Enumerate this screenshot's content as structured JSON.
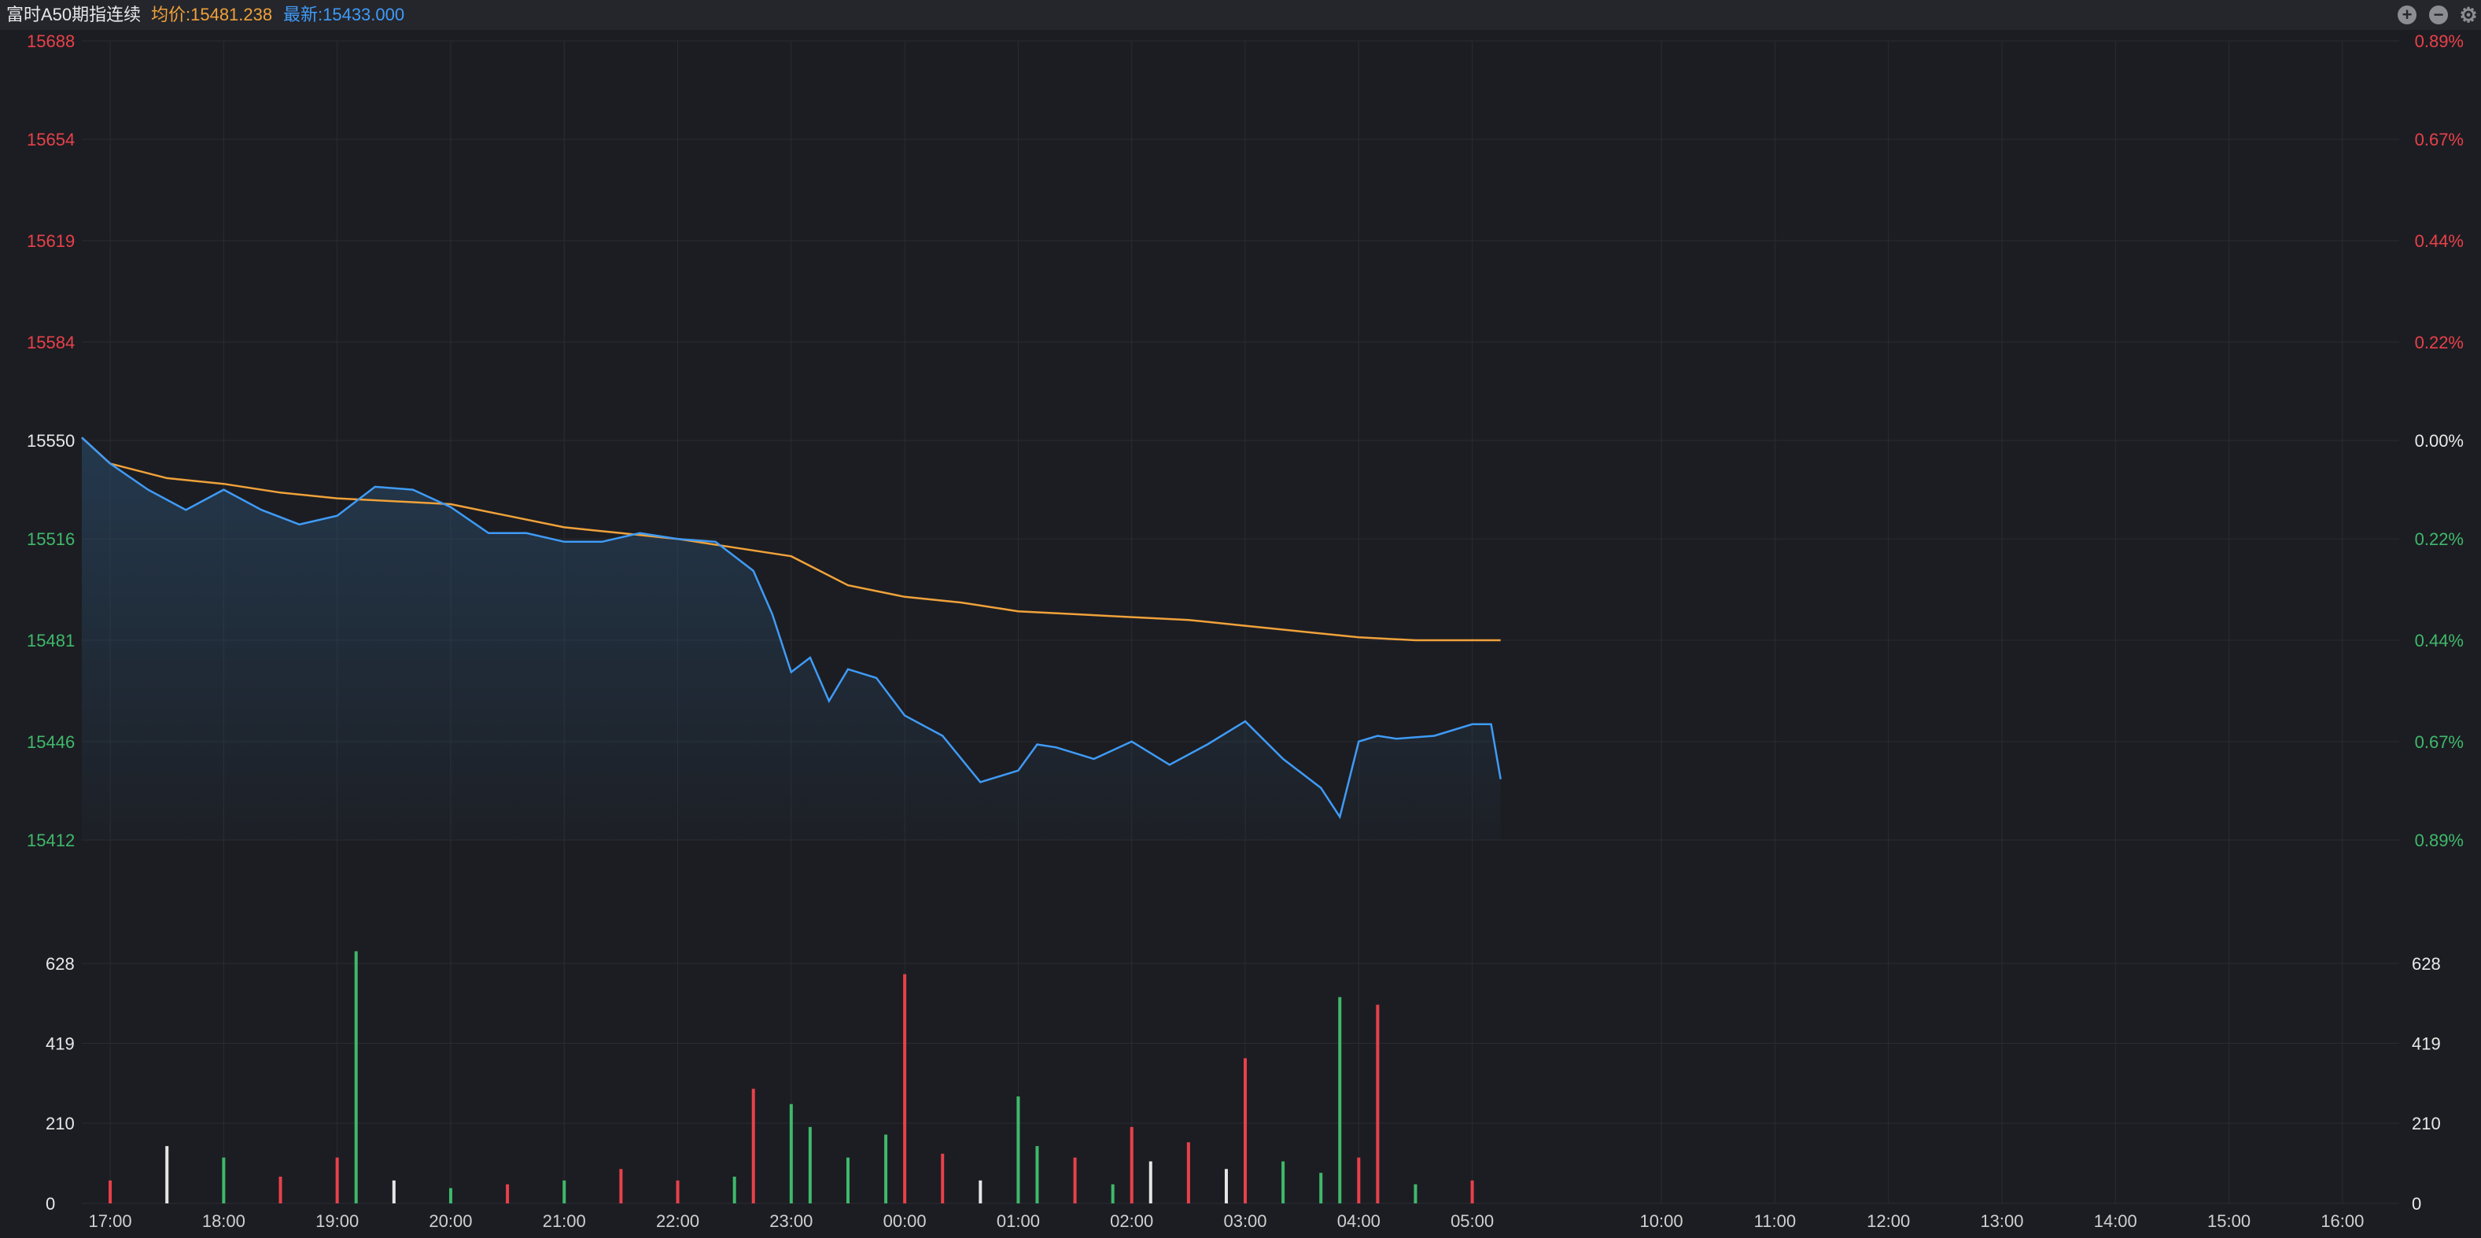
{
  "header": {
    "instrument": "富时A50期指连续",
    "avg_label": "均价:15481.238",
    "last_label": "最新:15433.000"
  },
  "controls": {
    "zoom_in_icon": "plus-circle-icon",
    "zoom_out_icon": "minus-circle-icon",
    "settings_icon": "gear-icon",
    "zoom_in_glyph": "+",
    "zoom_out_glyph": "−",
    "settings_glyph": "⚙"
  },
  "colors": {
    "background": "#1c1d22",
    "grid": "#2a2c32",
    "up": "#e8414a",
    "down": "#3fb96b",
    "flat": "#e6e6e6",
    "price_line": "#3f9bf7",
    "avg_line": "#f0a23a"
  },
  "chart_data": {
    "type": "line",
    "title": "富时A50期指连续",
    "reference_price": 15550,
    "price_axis": {
      "left_ticks": [
        "15688",
        "15654",
        "15619",
        "15584",
        "15550",
        "15516",
        "15481",
        "15446",
        "15412"
      ],
      "right_ticks": [
        "0.89%",
        "0.67%",
        "0.44%",
        "0.22%",
        "0.00%",
        "0.22%",
        "0.44%",
        "0.67%",
        "0.89%"
      ],
      "ylim": [
        15412,
        15688
      ]
    },
    "volume_axis": {
      "ticks": [
        "0",
        "210",
        "419",
        "628"
      ],
      "ylim": [
        0,
        700
      ]
    },
    "time_axis": {
      "labels": [
        "17:00",
        "18:00",
        "19:00",
        "20:00",
        "21:00",
        "22:00",
        "23:00",
        "00:00",
        "01:00",
        "02:00",
        "03:00",
        "04:00",
        "05:00",
        "10:00",
        "11:00",
        "12:00",
        "13:00",
        "14:00",
        "15:00",
        "16:00"
      ]
    },
    "series": [
      {
        "key": "price",
        "x": [
          "16:45",
          "17:00",
          "17:20",
          "17:40",
          "18:00",
          "18:20",
          "18:40",
          "19:00",
          "19:20",
          "19:40",
          "20:00",
          "20:20",
          "20:40",
          "21:00",
          "21:20",
          "21:40",
          "22:00",
          "22:20",
          "22:40",
          "22:50",
          "23:00",
          "23:10",
          "23:20",
          "23:30",
          "23:45",
          "00:00",
          "00:20",
          "00:40",
          "01:00",
          "01:10",
          "01:20",
          "01:40",
          "02:00",
          "02:20",
          "02:40",
          "03:00",
          "03:20",
          "03:40",
          "03:50",
          "04:00",
          "04:10",
          "04:20",
          "04:40",
          "05:00",
          "05:10",
          "05:15"
        ],
        "values": [
          15551,
          15542,
          15533,
          15526,
          15533,
          15526,
          15521,
          15524,
          15534,
          15533,
          15527,
          15518,
          15518,
          15515,
          15515,
          15518,
          15516,
          15515,
          15505,
          15490,
          15470,
          15475,
          15460,
          15471,
          15468,
          15455,
          15448,
          15432,
          15436,
          15445,
          15444,
          15440,
          15446,
          15438,
          15445,
          15453,
          15440,
          15430,
          15420,
          15446,
          15448,
          15447,
          15448,
          15452,
          15452,
          15433
        ]
      },
      {
        "key": "average",
        "x": [
          "16:45",
          "17:00",
          "17:30",
          "18:00",
          "18:30",
          "19:00",
          "19:30",
          "20:00",
          "20:30",
          "21:00",
          "21:30",
          "22:00",
          "22:30",
          "23:00",
          "23:30",
          "00:00",
          "00:30",
          "01:00",
          "01:30",
          "02:00",
          "02:30",
          "03:00",
          "03:30",
          "04:00",
          "04:30",
          "05:00",
          "05:15"
        ],
        "values": [
          15551,
          15542,
          15537,
          15535,
          15532,
          15530,
          15529,
          15528,
          15524,
          15520,
          15518,
          15516,
          15513,
          15510,
          15500,
          15496,
          15494,
          15491,
          15490,
          15489,
          15488,
          15486,
          15484,
          15482,
          15481,
          15481,
          15481
        ]
      }
    ],
    "volume": {
      "note": "per-minute volume bars, sampled",
      "x": [
        "17:00",
        "17:30",
        "18:00",
        "18:30",
        "19:00",
        "19:10",
        "19:30",
        "20:00",
        "20:30",
        "21:00",
        "21:30",
        "22:00",
        "22:30",
        "22:40",
        "23:00",
        "23:10",
        "23:30",
        "23:50",
        "00:00",
        "00:20",
        "00:40",
        "01:00",
        "01:10",
        "01:30",
        "01:50",
        "02:00",
        "02:10",
        "02:30",
        "02:50",
        "03:00",
        "03:20",
        "03:40",
        "03:50",
        "04:00",
        "04:10",
        "04:30",
        "05:00"
      ],
      "values": [
        60,
        150,
        120,
        70,
        120,
        660,
        60,
        40,
        50,
        60,
        90,
        60,
        70,
        300,
        260,
        200,
        120,
        180,
        600,
        130,
        60,
        280,
        150,
        120,
        50,
        200,
        110,
        160,
        90,
        380,
        110,
        80,
        540,
        120,
        520,
        50,
        60
      ],
      "directions": [
        "up",
        "flat",
        "down",
        "up",
        "up",
        "down",
        "flat",
        "down",
        "up",
        "down",
        "up",
        "up",
        "down",
        "up",
        "down",
        "down",
        "down",
        "down",
        "up",
        "up",
        "flat",
        "down",
        "down",
        "up",
        "down",
        "up",
        "flat",
        "up",
        "flat",
        "up",
        "down",
        "down",
        "down",
        "up",
        "up",
        "down",
        "up"
      ]
    }
  }
}
